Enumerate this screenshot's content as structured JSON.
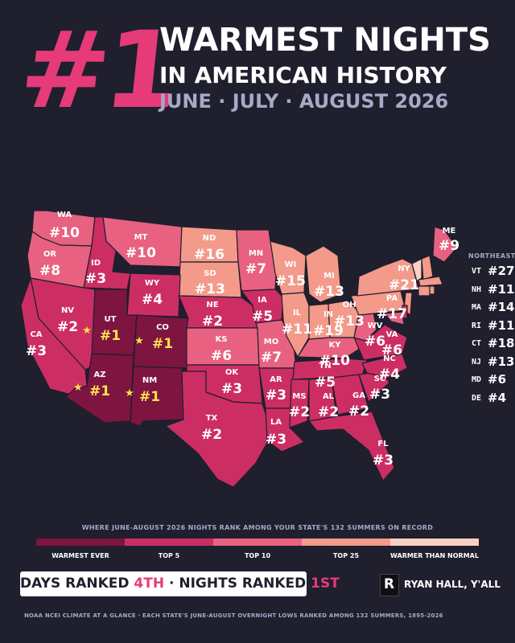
{
  "header": {
    "big_number": "#1",
    "line1": "WARMEST NIGHTS",
    "line2": "IN AMERICAN HISTORY",
    "line3": "JUNE · JULY · AUGUST 2026"
  },
  "colors": {
    "warmest_ever": "#7d1540",
    "top5": "#cc2e64",
    "top10": "#e86180",
    "top25": "#f49a8a",
    "warmer": "#fbd0c4",
    "background": "#1f1f2e",
    "accent": "#e63b78"
  },
  "states": [
    {
      "abbr": "WA",
      "rank": "#10"
    },
    {
      "abbr": "OR",
      "rank": "#8"
    },
    {
      "abbr": "ID",
      "rank": "#3"
    },
    {
      "abbr": "MT",
      "rank": "#10"
    },
    {
      "abbr": "ND",
      "rank": "#16"
    },
    {
      "abbr": "MN",
      "rank": "#7"
    },
    {
      "abbr": "SD",
      "rank": "#13"
    },
    {
      "abbr": "WY",
      "rank": "#4"
    },
    {
      "abbr": "NV",
      "rank": "#2"
    },
    {
      "abbr": "UT",
      "rank": "#1"
    },
    {
      "abbr": "CO",
      "rank": "#1"
    },
    {
      "abbr": "CA",
      "rank": "#3"
    },
    {
      "abbr": "AZ",
      "rank": "#1"
    },
    {
      "abbr": "NM",
      "rank": "#1"
    },
    {
      "abbr": "NE",
      "rank": "#2"
    },
    {
      "abbr": "KS",
      "rank": "#6"
    },
    {
      "abbr": "OK",
      "rank": "#3"
    },
    {
      "abbr": "TX",
      "rank": "#2"
    },
    {
      "abbr": "IA",
      "rank": "#5"
    },
    {
      "abbr": "MO",
      "rank": "#7"
    },
    {
      "abbr": "AR",
      "rank": "#3"
    },
    {
      "abbr": "LA",
      "rank": "#3"
    },
    {
      "abbr": "WI",
      "rank": "#15"
    },
    {
      "abbr": "IL",
      "rank": "#11"
    },
    {
      "abbr": "MI",
      "rank": "#13"
    },
    {
      "abbr": "IN",
      "rank": "#19"
    },
    {
      "abbr": "OH",
      "rank": "#13"
    },
    {
      "abbr": "KY",
      "rank": "#10"
    },
    {
      "abbr": "TN",
      "rank": "#5"
    },
    {
      "abbr": "MS",
      "rank": "#2"
    },
    {
      "abbr": "AL",
      "rank": "#2"
    },
    {
      "abbr": "GA",
      "rank": "#2"
    },
    {
      "abbr": "FL",
      "rank": "#3"
    },
    {
      "abbr": "SC",
      "rank": "#3"
    },
    {
      "abbr": "NC",
      "rank": "#4"
    },
    {
      "abbr": "VA",
      "rank": "#6"
    },
    {
      "abbr": "WV",
      "rank": "#6"
    },
    {
      "abbr": "PA",
      "rank": "#17"
    },
    {
      "abbr": "NY",
      "rank": "#21"
    },
    {
      "abbr": "ME",
      "rank": "#9"
    }
  ],
  "northeast": {
    "title": "NORTHEAST",
    "items": [
      {
        "abbr": "VT",
        "rank": "#27"
      },
      {
        "abbr": "NH",
        "rank": "#11"
      },
      {
        "abbr": "MA",
        "rank": "#14"
      },
      {
        "abbr": "RI",
        "rank": "#11"
      },
      {
        "abbr": "CT",
        "rank": "#18"
      },
      {
        "abbr": "NJ",
        "rank": "#13"
      },
      {
        "abbr": "MD",
        "rank": "#6"
      },
      {
        "abbr": "DE",
        "rank": "#4"
      }
    ]
  },
  "legend": {
    "title": "WHERE JUNE-AUGUST 2026 NIGHTS RANK AMONG YOUR STATE'S 132 SUMMERS ON RECORD",
    "items": [
      {
        "label": "WARMEST EVER",
        "color": "#7d1540"
      },
      {
        "label": "TOP 5",
        "color": "#cc2e64"
      },
      {
        "label": "TOP 10",
        "color": "#e86180"
      },
      {
        "label": "TOP 25",
        "color": "#f49a8a"
      },
      {
        "label": "WARMER THAN NORMAL",
        "color": "#fbd0c4"
      }
    ]
  },
  "summary": {
    "days_prefix": "DAYS RANKED ",
    "days_rank": "4TH",
    "separator": " · NIGHTS RANKED ",
    "nights_rank": "1ST"
  },
  "brand": {
    "logo_letter": "R",
    "name": "RYAN HALL, Y'ALL"
  },
  "footer": "NOAA NCEI CLIMATE AT A GLANCE · EACH STATE'S JUNE-AUGUST OVERNIGHT LOWS RANKED AMONG 132 SUMMERS, 1895-2026"
}
